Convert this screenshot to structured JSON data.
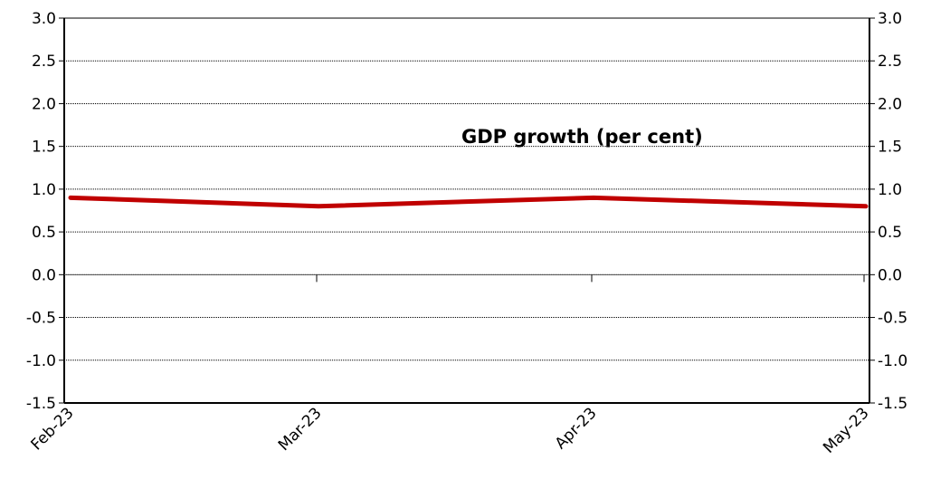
{
  "chart_data": {
    "type": "line",
    "title": "GDP growth (per cent)",
    "xlabel": "",
    "ylabel": "",
    "categories": [
      "Feb-23",
      "Mar-23",
      "Apr-23",
      "May-23"
    ],
    "series": [
      {
        "name": "",
        "values": [
          0.9,
          0.8,
          0.9,
          0.8
        ],
        "color": "#c00000"
      }
    ],
    "ylim": [
      -1.5,
      3.0
    ],
    "y_ticks": [
      3.0,
      2.5,
      2.0,
      1.5,
      1.0,
      0.5,
      0.0,
      -0.5,
      -1.0,
      -1.5
    ],
    "y_tick_labels": [
      "3.0",
      "2.5",
      "2.0",
      "1.5",
      "1.0",
      "0.5",
      "0.0",
      "-0.5",
      "-1.0",
      "-1.5"
    ],
    "secondary_y_axis": true,
    "grid": true,
    "grid_style": "dotted",
    "x_labels_rotated": true,
    "legend": "none"
  }
}
